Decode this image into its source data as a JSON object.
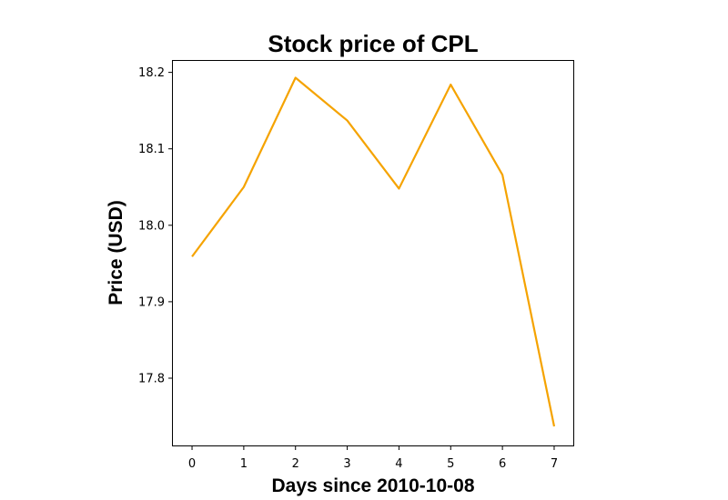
{
  "chart_data": {
    "type": "line",
    "title": "Stock price of CPL",
    "xlabel": "Days since 2010-10-08",
    "ylabel": "Price (USD)",
    "x": [
      0,
      1,
      2,
      3,
      4,
      5,
      6,
      7
    ],
    "series": [
      {
        "values": [
          17.959,
          18.05,
          18.193,
          18.137,
          18.048,
          18.184,
          18.066,
          17.737
        ],
        "color": "#f5a300"
      }
    ],
    "xticks": [
      "0",
      "1",
      "2",
      "3",
      "4",
      "5",
      "6",
      "7"
    ],
    "yticks": [
      "17.8",
      "17.9",
      "18.0",
      "18.1",
      "18.2"
    ],
    "xlim": [
      -0.37,
      7.37
    ],
    "ylim": [
      17.712,
      18.215
    ],
    "grid": false,
    "legend": "none"
  }
}
